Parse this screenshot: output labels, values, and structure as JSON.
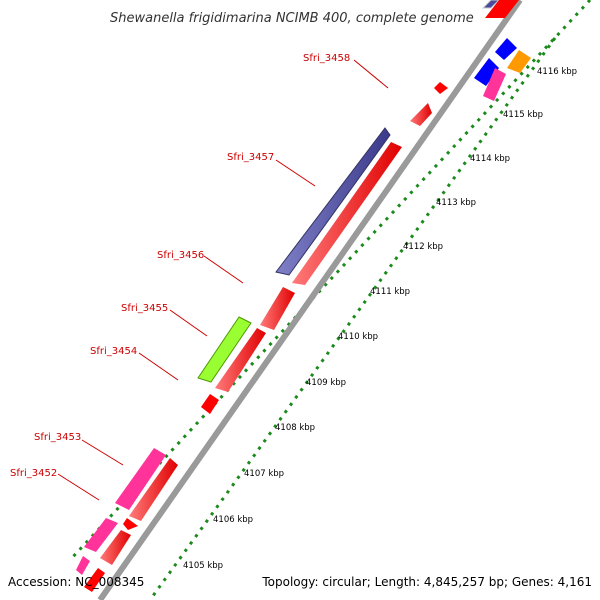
{
  "title": "Shewanella frigidimarina NCIMB 400, complete genome",
  "footer": {
    "accession": "Accession: NC_008345",
    "topology": "Topology: circular; Length: 4,845,257 bp; Genes: 4,161"
  },
  "genes": [
    "Sfri_3458",
    "Sfri_3457",
    "Sfri_3456",
    "Sfri_3455",
    "Sfri_3454",
    "Sfri_3453",
    "Sfri_3452"
  ],
  "ticks": [
    "4116 kbp",
    "4115 kbp",
    "4114 kbp",
    "4113 kbp",
    "4112 kbp",
    "4111 kbp",
    "4110 kbp",
    "4109 kbp",
    "4108 kbp",
    "4107 kbp",
    "4106 kbp",
    "4105 kbp"
  ],
  "colors": {
    "cds_forward": "#ff0000",
    "cds_reverse": "#4b4b9b",
    "cds_pink": "#ff3399",
    "cds_green": "#99ff33",
    "cds_blue": "#0000ff",
    "cds_orange": "#ff9900",
    "backbone": "#9a9a9a",
    "tick_marks": "#1a8a1a",
    "gene_label": "#cc0000"
  }
}
